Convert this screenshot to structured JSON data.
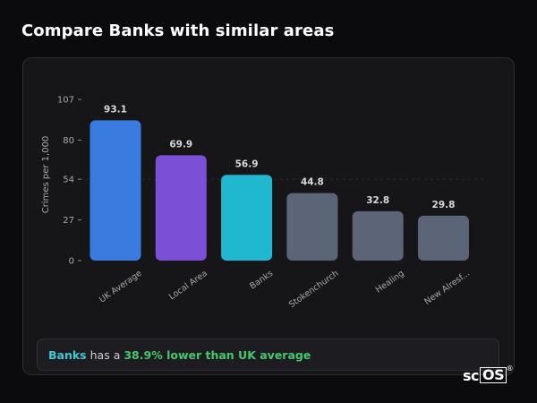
{
  "page": {
    "title": "Compare Banks with similar areas"
  },
  "summary": {
    "area": "Banks",
    "connector": "has a",
    "comparison": "38.9% lower than UK average"
  },
  "logo": {
    "text_a": "sc",
    "text_b": "OS",
    "mark": "®"
  },
  "colors": {
    "uk_average": "#3a7be0",
    "local_area": "#7b4fd6",
    "selected": "#1fb8cf",
    "other": "#5c6578",
    "background": "#0b0b0d",
    "card": "#161619"
  },
  "chart_data": {
    "type": "bar",
    "categories": [
      "UK Average",
      "Local Area",
      "Banks",
      "Stokenchurch",
      "Healing",
      "New Alresf..."
    ],
    "values": [
      93.1,
      69.9,
      56.9,
      44.8,
      32.8,
      29.8
    ],
    "value_labels": [
      "93.1",
      "69.9",
      "56.9",
      "44.8",
      "32.8",
      "29.8"
    ],
    "bar_colors": [
      "uk_average",
      "local_area",
      "selected",
      "other",
      "other",
      "other"
    ],
    "ylabel": "Crimes per 1,000",
    "yticks": [
      0,
      27,
      54,
      80,
      107
    ],
    "ylim": [
      0,
      107
    ],
    "grid": "dashed horizontal at 54",
    "xtick_rotation": -35
  }
}
